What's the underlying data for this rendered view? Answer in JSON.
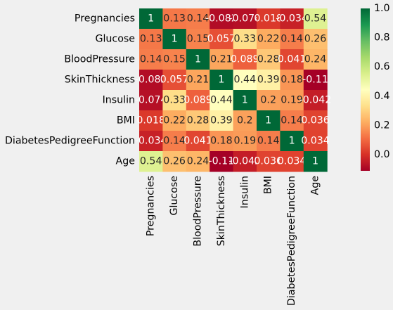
{
  "chart_data": {
    "type": "heatmap",
    "title": "",
    "xlabel": "",
    "ylabel": "",
    "labels": [
      "Pregnancies",
      "Glucose",
      "BloodPressure",
      "SkinThickness",
      "Insulin",
      "BMI",
      "DiabetesPedigreeFunction",
      "Age"
    ],
    "values": [
      [
        1,
        0.13,
        0.14,
        -0.082,
        -0.074,
        0.018,
        -0.034,
        0.54
      ],
      [
        0.13,
        1,
        0.15,
        0.057,
        0.33,
        0.22,
        0.14,
        0.26
      ],
      [
        0.14,
        0.15,
        1,
        0.21,
        0.089,
        0.28,
        0.041,
        0.24
      ],
      [
        -0.082,
        0.057,
        0.21,
        1,
        0.44,
        0.39,
        0.18,
        -0.11
      ],
      [
        -0.074,
        0.33,
        0.089,
        0.44,
        1,
        0.2,
        0.19,
        -0.042
      ],
      [
        0.018,
        0.22,
        0.28,
        0.39,
        0.2,
        1,
        0.14,
        0.036
      ],
      [
        -0.034,
        0.14,
        0.041,
        0.18,
        0.19,
        0.14,
        1,
        0.034
      ],
      [
        0.54,
        0.26,
        0.24,
        -0.11,
        -0.042,
        0.036,
        0.034,
        1
      ]
    ],
    "cell_labels": [
      [
        "1",
        "0.13",
        "0.14",
        "-0.082",
        "-0.074",
        "0.018",
        "-0.034",
        "0.54"
      ],
      [
        "0.13",
        "1",
        "0.15",
        "0.057",
        "0.33",
        "0.22",
        "0.14",
        "0.26"
      ],
      [
        "0.14",
        "0.15",
        "1",
        "0.21",
        "0.089",
        "0.28",
        "0.041",
        "0.24"
      ],
      [
        "-0.082",
        "0.057",
        "0.21",
        "1",
        "0.44",
        "0.39",
        "0.18",
        "-0.11"
      ],
      [
        "-0.074",
        "0.33",
        "0.089",
        "0.44",
        "1",
        "0.2",
        "0.19",
        "-0.042"
      ],
      [
        "0.018",
        "0.22",
        "0.28",
        "0.39",
        "0.2",
        "1",
        "0.14",
        "0.036"
      ],
      [
        "-0.034",
        "0.14",
        "0.041",
        "0.18",
        "0.19",
        "0.14",
        "1",
        "0.034"
      ],
      [
        "0.54",
        "0.26",
        "0.24",
        "-0.11",
        "-0.042",
        "0.036",
        "0.034",
        "1"
      ]
    ],
    "colormap": "RdYlGn",
    "vmin": -0.11,
    "vmax": 1,
    "colorbar_ticks": [
      "0.0",
      "0.2",
      "0.4",
      "0.6",
      "0.8",
      "1.0"
    ],
    "colorbar_tick_values": [
      0,
      0.2,
      0.4,
      0.6,
      0.8,
      1.0
    ],
    "annotated": true,
    "grid": false
  },
  "colors": {
    "background": "#f0f0f0",
    "text_dark": "#262626",
    "text_light": "#ffffff"
  }
}
